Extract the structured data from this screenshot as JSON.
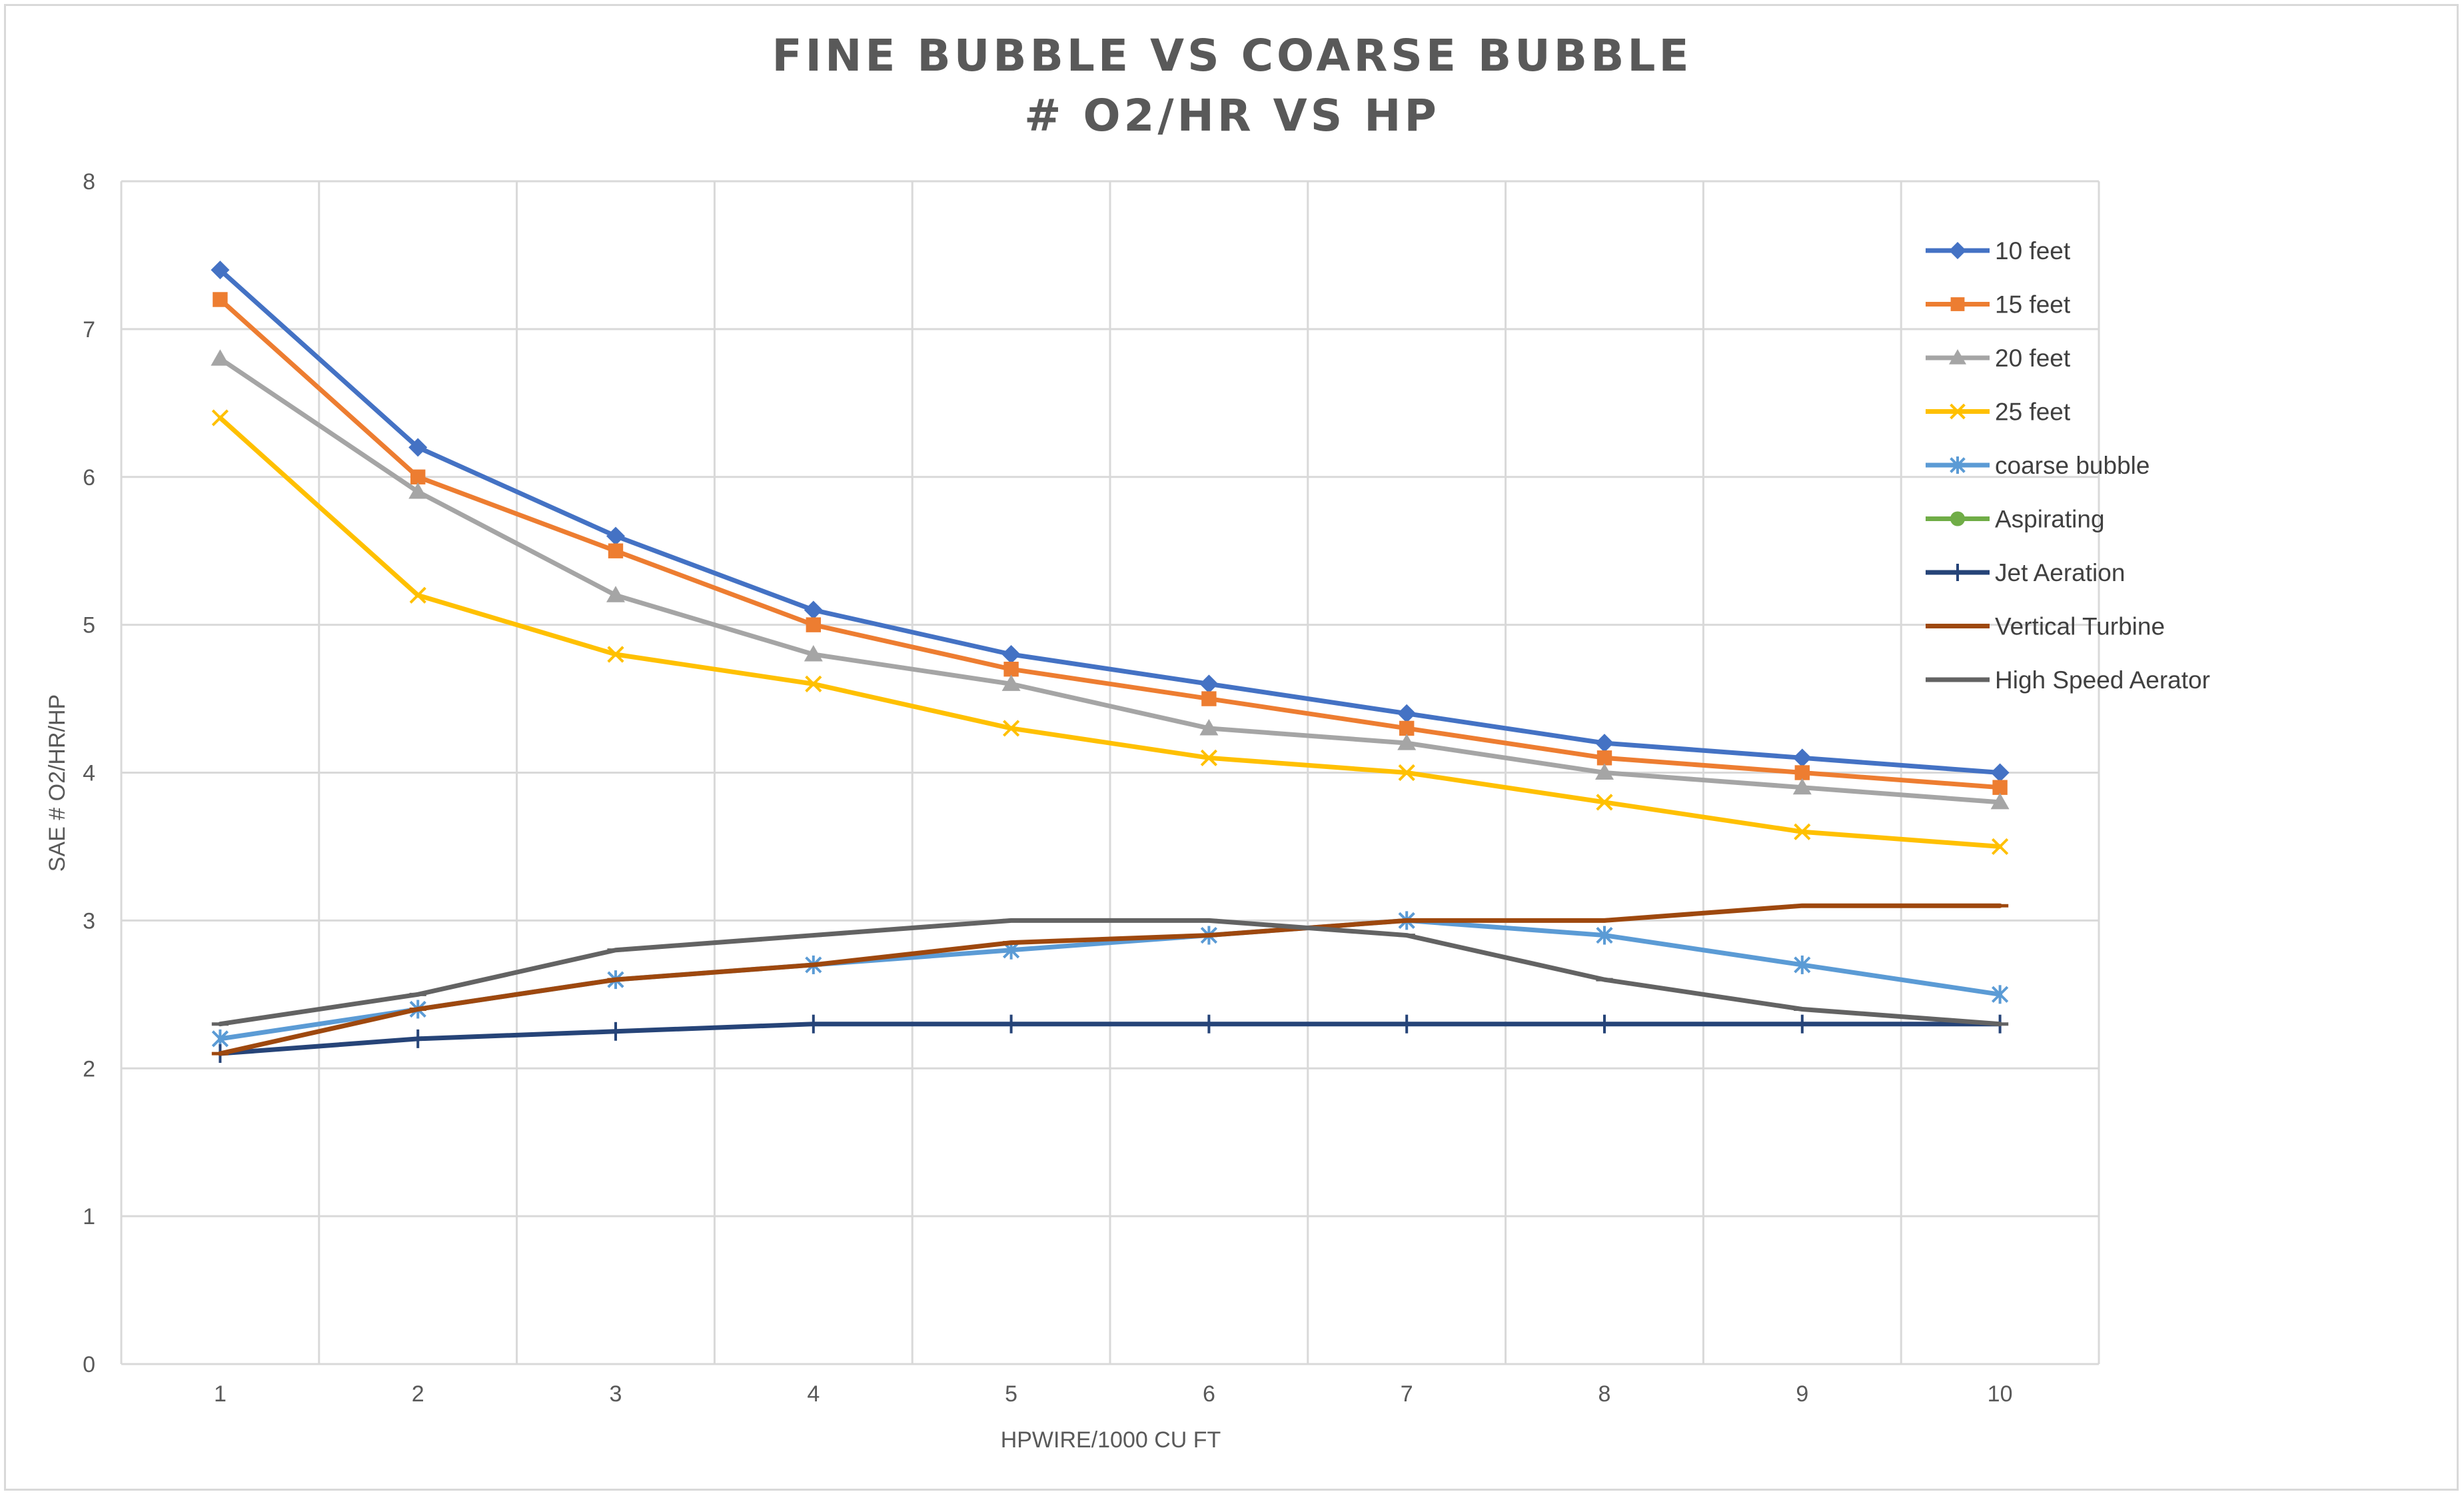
{
  "chart_data": {
    "type": "line",
    "title_lines": [
      "FINE BUBBLE VS COARSE BUBBLE",
      "# O2/HR VS HP"
    ],
    "xlabel": "HPWIRE/1000 CU FT",
    "ylabel": "SAE # O2/HR/HP",
    "categories": [
      "1",
      "2",
      "3",
      "4",
      "5",
      "6",
      "7",
      "8",
      "9",
      "10"
    ],
    "ylim": [
      0,
      8
    ],
    "yticks": [
      "0",
      "1",
      "2",
      "3",
      "4",
      "5",
      "6",
      "7",
      "8"
    ],
    "grid": true,
    "legend_position": "right",
    "series": [
      {
        "name": "10 feet",
        "color": "#4472C4",
        "marker": "diamond",
        "values": [
          7.4,
          6.2,
          5.6,
          5.1,
          4.8,
          4.6,
          4.4,
          4.2,
          4.1,
          4.0
        ]
      },
      {
        "name": "15 feet",
        "color": "#ED7D31",
        "marker": "square",
        "values": [
          7.2,
          6.0,
          5.5,
          5.0,
          4.7,
          4.5,
          4.3,
          4.1,
          4.0,
          3.9
        ]
      },
      {
        "name": "20 feet",
        "color": "#A5A5A5",
        "marker": "triangle",
        "values": [
          6.8,
          5.9,
          5.2,
          4.8,
          4.6,
          4.3,
          4.2,
          4.0,
          3.9,
          3.8
        ]
      },
      {
        "name": "25 feet",
        "color": "#FFC000",
        "marker": "x",
        "values": [
          6.4,
          5.2,
          4.8,
          4.6,
          4.3,
          4.1,
          4.0,
          3.8,
          3.6,
          3.5
        ]
      },
      {
        "name": "coarse bubble",
        "color": "#5B9BD5",
        "marker": "star",
        "values": [
          2.2,
          2.4,
          2.6,
          2.7,
          2.8,
          2.9,
          3.0,
          2.9,
          2.7,
          2.5
        ]
      },
      {
        "name": "Aspirating",
        "color": "#70AD47",
        "marker": "circle",
        "values": [
          null,
          null,
          null,
          null,
          null,
          null,
          null,
          null,
          null,
          null
        ]
      },
      {
        "name": "Jet Aeration",
        "color": "#264478",
        "marker": "plus",
        "values": [
          2.1,
          2.2,
          2.25,
          2.3,
          2.3,
          2.3,
          2.3,
          2.3,
          2.3,
          2.3
        ]
      },
      {
        "name": "Vertical Turbine",
        "color": "#9E480E",
        "marker": "dash",
        "values": [
          2.1,
          2.4,
          2.6,
          2.7,
          2.85,
          2.9,
          3.0,
          3.0,
          3.1,
          3.1
        ]
      },
      {
        "name": "High Speed Aerator",
        "color": "#636363",
        "marker": "dash",
        "values": [
          2.3,
          2.5,
          2.8,
          2.9,
          3.0,
          3.0,
          2.9,
          2.6,
          2.4,
          2.3
        ]
      }
    ]
  }
}
